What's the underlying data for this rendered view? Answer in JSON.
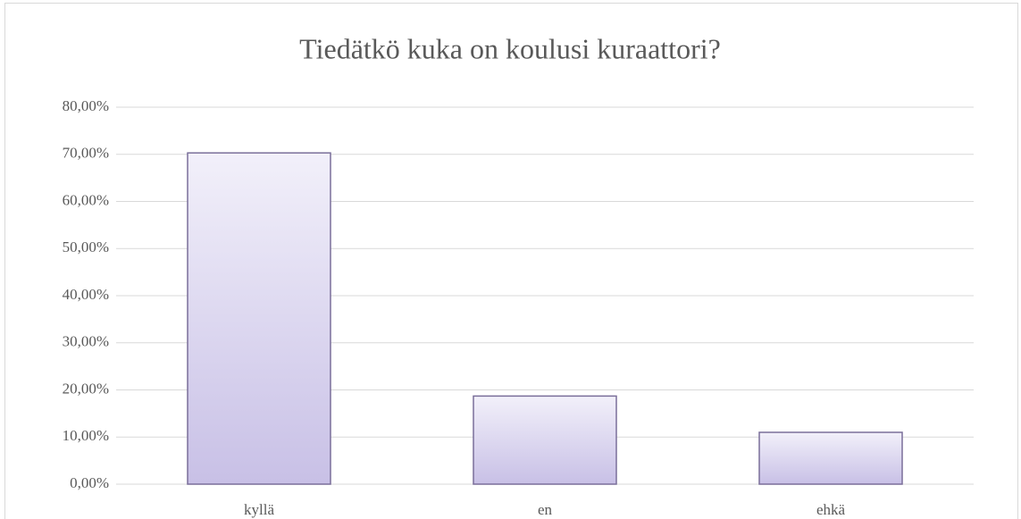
{
  "chart_data": {
    "type": "bar",
    "title": "Tiedätkö kuka on koulusi kuraattori?",
    "categories": [
      "kyllä",
      "en",
      "ehkä"
    ],
    "values": [
      70.3,
      18.7,
      11.0
    ],
    "color": "#c8c0e6",
    "ylim": [
      0,
      80
    ],
    "yticks": [
      {
        "value": 0,
        "label": "0,00%"
      },
      {
        "value": 10,
        "label": "10,00%"
      },
      {
        "value": 20,
        "label": "20,00%"
      },
      {
        "value": 30,
        "label": "30,00%"
      },
      {
        "value": 40,
        "label": "40,00%"
      },
      {
        "value": 50,
        "label": "50,00%"
      },
      {
        "value": 60,
        "label": "60,00%"
      },
      {
        "value": 70,
        "label": "70,00%"
      },
      {
        "value": 80,
        "label": "80,00%"
      }
    ],
    "grid": true
  }
}
